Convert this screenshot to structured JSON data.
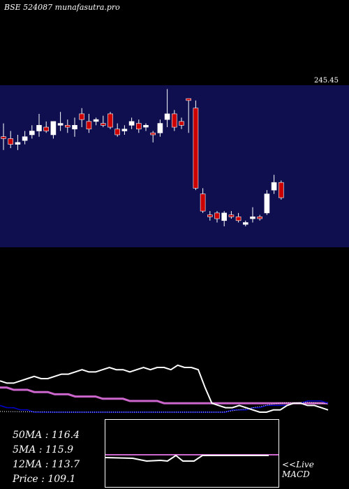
{
  "header": {
    "title": "BSE 524087 munafasutra.pro"
  },
  "price_tag": "245.45",
  "stats": [
    {
      "label": "50MA",
      "value": "116.4"
    },
    {
      "label": "5MA",
      "value": "115.9"
    },
    {
      "label": "12MA",
      "value": "113.7"
    },
    {
      "label": "Price",
      "value": "109.1"
    }
  ],
  "macd_label": {
    "line1": "<<Live",
    "line2": "MACD"
  },
  "colors": {
    "candle_panel": "#0f0f50",
    "up": "#ffffff",
    "down": "#cc0000",
    "ma50": "#cc66cc",
    "ma12": "#0000cc",
    "ma5": "#ffffff"
  },
  "chart_data": {
    "type": "candlestick",
    "candles": [
      {
        "o": 128,
        "h": 135,
        "l": 121,
        "c": 127
      },
      {
        "o": 127,
        "h": 131,
        "l": 122,
        "c": 124
      },
      {
        "o": 124,
        "h": 129,
        "l": 121,
        "c": 125
      },
      {
        "o": 126,
        "h": 131,
        "l": 124,
        "c": 128
      },
      {
        "o": 129,
        "h": 134,
        "l": 127,
        "c": 131
      },
      {
        "o": 131,
        "h": 140,
        "l": 128,
        "c": 134
      },
      {
        "o": 133,
        "h": 136,
        "l": 130,
        "c": 131
      },
      {
        "o": 129,
        "h": 136,
        "l": 127,
        "c": 136
      },
      {
        "o": 134,
        "h": 141,
        "l": 131,
        "c": 135
      },
      {
        "o": 134,
        "h": 137,
        "l": 130,
        "c": 133
      },
      {
        "o": 132,
        "h": 138,
        "l": 128,
        "c": 134
      },
      {
        "o": 140,
        "h": 143,
        "l": 133,
        "c": 137
      },
      {
        "o": 136,
        "h": 140,
        "l": 130,
        "c": 132
      },
      {
        "o": 136,
        "h": 138,
        "l": 134,
        "c": 137
      },
      {
        "o": 135,
        "h": 139,
        "l": 133,
        "c": 134
      },
      {
        "o": 140,
        "h": 141,
        "l": 132,
        "c": 133
      },
      {
        "o": 132,
        "h": 135,
        "l": 128,
        "c": 129
      },
      {
        "o": 131,
        "h": 134,
        "l": 129,
        "c": 132
      },
      {
        "o": 134,
        "h": 138,
        "l": 132,
        "c": 136
      },
      {
        "o": 135,
        "h": 137,
        "l": 130,
        "c": 132
      },
      {
        "o": 133,
        "h": 135,
        "l": 131,
        "c": 134
      },
      {
        "o": 130,
        "h": 131,
        "l": 125,
        "c": 129
      },
      {
        "o": 130,
        "h": 137,
        "l": 128,
        "c": 135
      },
      {
        "o": 137,
        "h": 153,
        "l": 133,
        "c": 140
      },
      {
        "o": 140,
        "h": 142,
        "l": 131,
        "c": 133
      },
      {
        "o": 136,
        "h": 138,
        "l": 132,
        "c": 134
      },
      {
        "o": 148,
        "h": 148,
        "l": 130,
        "c": 147
      },
      {
        "o": 143,
        "h": 147,
        "l": 100,
        "c": 101
      },
      {
        "o": 98,
        "h": 101,
        "l": 88,
        "c": 89
      },
      {
        "o": 87,
        "h": 89,
        "l": 84,
        "c": 86
      },
      {
        "o": 88,
        "h": 89,
        "l": 83,
        "c": 85
      },
      {
        "o": 84,
        "h": 89,
        "l": 81,
        "c": 88
      },
      {
        "o": 87,
        "h": 89,
        "l": 85,
        "c": 86
      },
      {
        "o": 86,
        "h": 88,
        "l": 83,
        "c": 84
      },
      {
        "o": 82,
        "h": 84,
        "l": 81,
        "c": 83
      },
      {
        "o": 85,
        "h": 91,
        "l": 83,
        "c": 86
      },
      {
        "o": 86,
        "h": 87,
        "l": 84,
        "c": 85
      },
      {
        "o": 88,
        "h": 100,
        "l": 87,
        "c": 98
      },
      {
        "o": 100,
        "h": 108,
        "l": 98,
        "c": 104
      },
      {
        "o": 104,
        "h": 105,
        "l": 95,
        "c": 96
      }
    ],
    "moving_averages": [
      {
        "name": "5MA",
        "color": "#ffffff",
        "values": [
          114,
          113,
          113,
          114,
          115,
          116,
          115,
          115,
          116,
          117,
          117,
          118,
          119,
          118,
          118,
          119,
          120,
          119,
          119,
          118,
          119,
          120,
          119,
          120,
          120,
          119,
          121,
          120,
          120,
          119,
          111,
          104,
          103,
          102,
          102,
          103,
          102,
          101,
          100,
          100,
          101,
          101,
          103,
          104,
          104,
          103,
          103,
          102,
          101
        ]
      },
      {
        "name": "12MA",
        "color": "#0000cc",
        "values": [
          103,
          102,
          102,
          101,
          101,
          100,
          100,
          100,
          100,
          100,
          100,
          100,
          100,
          100,
          100,
          100,
          100,
          100,
          100,
          100,
          100,
          100,
          100,
          100,
          100,
          100,
          100,
          100,
          100,
          100,
          100,
          100,
          100,
          100,
          101,
          101,
          101,
          102,
          102,
          103,
          103,
          103,
          103,
          104,
          104,
          105,
          105,
          105,
          104
        ]
      },
      {
        "name": "50MA",
        "color": "#cc66cc",
        "values": [
          111,
          111,
          110,
          110,
          110,
          109,
          109,
          109,
          108,
          108,
          108,
          107,
          107,
          107,
          107,
          106,
          106,
          106,
          106,
          105,
          105,
          105,
          105,
          105,
          104,
          104,
          104,
          104,
          104,
          104,
          104,
          104,
          104,
          104,
          104,
          104,
          104,
          104,
          104,
          104,
          104,
          104,
          104,
          104,
          104,
          104,
          104,
          104,
          104
        ]
      }
    ]
  }
}
